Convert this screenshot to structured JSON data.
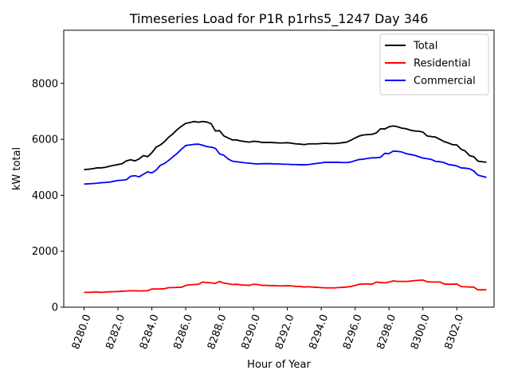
{
  "chart_data": {
    "type": "line",
    "title": "Timeseries Load for P1R p1rhs5_1247  Day 346",
    "xlabel": "Hour of Year",
    "ylabel": "kW total",
    "xlim": [
      8278.8,
      8304.2
    ],
    "ylim": [
      0,
      9900
    ],
    "x_ticks": [
      8280.0,
      8282.0,
      8284.0,
      8286.0,
      8288.0,
      8290.0,
      8292.0,
      8294.0,
      8296.0,
      8298.0,
      8300.0,
      8302.0
    ],
    "x_tick_labels": [
      "8280.0",
      "8282.0",
      "8284.0",
      "8286.0",
      "8288.0",
      "8290.0",
      "8292.0",
      "8294.0",
      "8296.0",
      "8298.0",
      "8300.0",
      "8302.0"
    ],
    "y_ticks": [
      0,
      2000,
      4000,
      6000,
      8000
    ],
    "y_tick_labels": [
      "0",
      "2000",
      "4000",
      "6000",
      "8000"
    ],
    "legend_position": "top-right",
    "x": [
      8280.0,
      8280.25,
      8280.5,
      8280.75,
      8281.0,
      8281.25,
      8281.5,
      8281.75,
      8282.0,
      8282.25,
      8282.5,
      8282.75,
      8283.0,
      8283.25,
      8283.5,
      8283.75,
      8284.0,
      8284.25,
      8284.5,
      8284.75,
      8285.0,
      8285.25,
      8285.5,
      8285.75,
      8286.0,
      8286.25,
      8286.5,
      8286.75,
      8287.0,
      8287.25,
      8287.5,
      8287.75,
      8288.0,
      8288.25,
      8288.5,
      8288.75,
      8289.0,
      8289.25,
      8289.5,
      8289.75,
      8290.0,
      8290.25,
      8290.5,
      8290.75,
      8291.0,
      8291.25,
      8291.5,
      8291.75,
      8292.0,
      8292.25,
      8292.5,
      8292.75,
      8293.0,
      8293.25,
      8293.5,
      8293.75,
      8294.0,
      8294.25,
      8294.5,
      8294.75,
      8295.0,
      8295.25,
      8295.5,
      8295.75,
      8296.0,
      8296.25,
      8296.5,
      8296.75,
      8297.0,
      8297.25,
      8297.5,
      8297.75,
      8298.0,
      8298.25,
      8298.5,
      8298.75,
      8299.0,
      8299.25,
      8299.5,
      8299.75,
      8300.0,
      8300.25,
      8300.5,
      8300.75,
      8301.0,
      8301.25,
      8301.5,
      8301.75,
      8302.0,
      8302.25,
      8302.5,
      8302.75,
      8303.0,
      8303.25,
      8303.5,
      8303.75
    ],
    "series": [
      {
        "name": "Total",
        "color": "#000000",
        "values": [
          4920,
          4930,
          4950,
          4980,
          4980,
          5000,
          5040,
          5070,
          5100,
          5130,
          5230,
          5270,
          5230,
          5300,
          5420,
          5380,
          5520,
          5720,
          5800,
          5920,
          6080,
          6200,
          6350,
          6470,
          6570,
          6600,
          6640,
          6610,
          6640,
          6620,
          6560,
          6300,
          6310,
          6120,
          6050,
          5980,
          5980,
          5940,
          5920,
          5900,
          5930,
          5920,
          5890,
          5890,
          5890,
          5880,
          5870,
          5870,
          5880,
          5860,
          5840,
          5830,
          5810,
          5840,
          5840,
          5840,
          5850,
          5860,
          5850,
          5850,
          5860,
          5880,
          5900,
          5970,
          6050,
          6120,
          6160,
          6170,
          6180,
          6230,
          6380,
          6370,
          6450,
          6480,
          6450,
          6400,
          6380,
          6330,
          6300,
          6290,
          6260,
          6120,
          6100,
          6080,
          6000,
          5920,
          5870,
          5810,
          5800,
          5650,
          5580,
          5420,
          5380,
          5220,
          5200,
          5180
        ]
      },
      {
        "name": "Residential",
        "color": "#ff0000",
        "values": [
          530,
          530,
          535,
          545,
          530,
          540,
          550,
          555,
          560,
          570,
          580,
          590,
          585,
          580,
          585,
          590,
          650,
          650,
          655,
          660,
          700,
          700,
          710,
          710,
          780,
          800,
          810,
          820,
          900,
          880,
          870,
          850,
          920,
          860,
          840,
          810,
          820,
          800,
          790,
          780,
          820,
          810,
          780,
          780,
          770,
          770,
          760,
          760,
          770,
          760,
          745,
          740,
          720,
          730,
          720,
          710,
          700,
          690,
          690,
          690,
          700,
          710,
          720,
          740,
          780,
          820,
          830,
          830,
          820,
          900,
          880,
          870,
          900,
          940,
          920,
          920,
          920,
          930,
          950,
          960,
          970,
          910,
          900,
          900,
          900,
          830,
          820,
          820,
          830,
          740,
          730,
          720,
          720,
          620,
          620,
          625
        ]
      },
      {
        "name": "Commercial",
        "color": "#0000ff",
        "values": [
          4400,
          4410,
          4420,
          4430,
          4450,
          4460,
          4470,
          4500,
          4530,
          4540,
          4560,
          4680,
          4700,
          4660,
          4750,
          4840,
          4800,
          4900,
          5070,
          5140,
          5250,
          5380,
          5500,
          5650,
          5780,
          5800,
          5820,
          5830,
          5790,
          5740,
          5720,
          5680,
          5480,
          5430,
          5300,
          5220,
          5200,
          5180,
          5160,
          5150,
          5130,
          5120,
          5130,
          5130,
          5130,
          5120,
          5120,
          5110,
          5110,
          5100,
          5100,
          5090,
          5090,
          5100,
          5120,
          5140,
          5160,
          5180,
          5180,
          5180,
          5180,
          5170,
          5170,
          5190,
          5240,
          5280,
          5290,
          5320,
          5340,
          5340,
          5360,
          5500,
          5490,
          5580,
          5570,
          5550,
          5490,
          5460,
          5430,
          5380,
          5330,
          5310,
          5280,
          5210,
          5200,
          5170,
          5100,
          5080,
          5050,
          4980,
          4970,
          4950,
          4870,
          4720,
          4680,
          4640
        ]
      }
    ]
  }
}
